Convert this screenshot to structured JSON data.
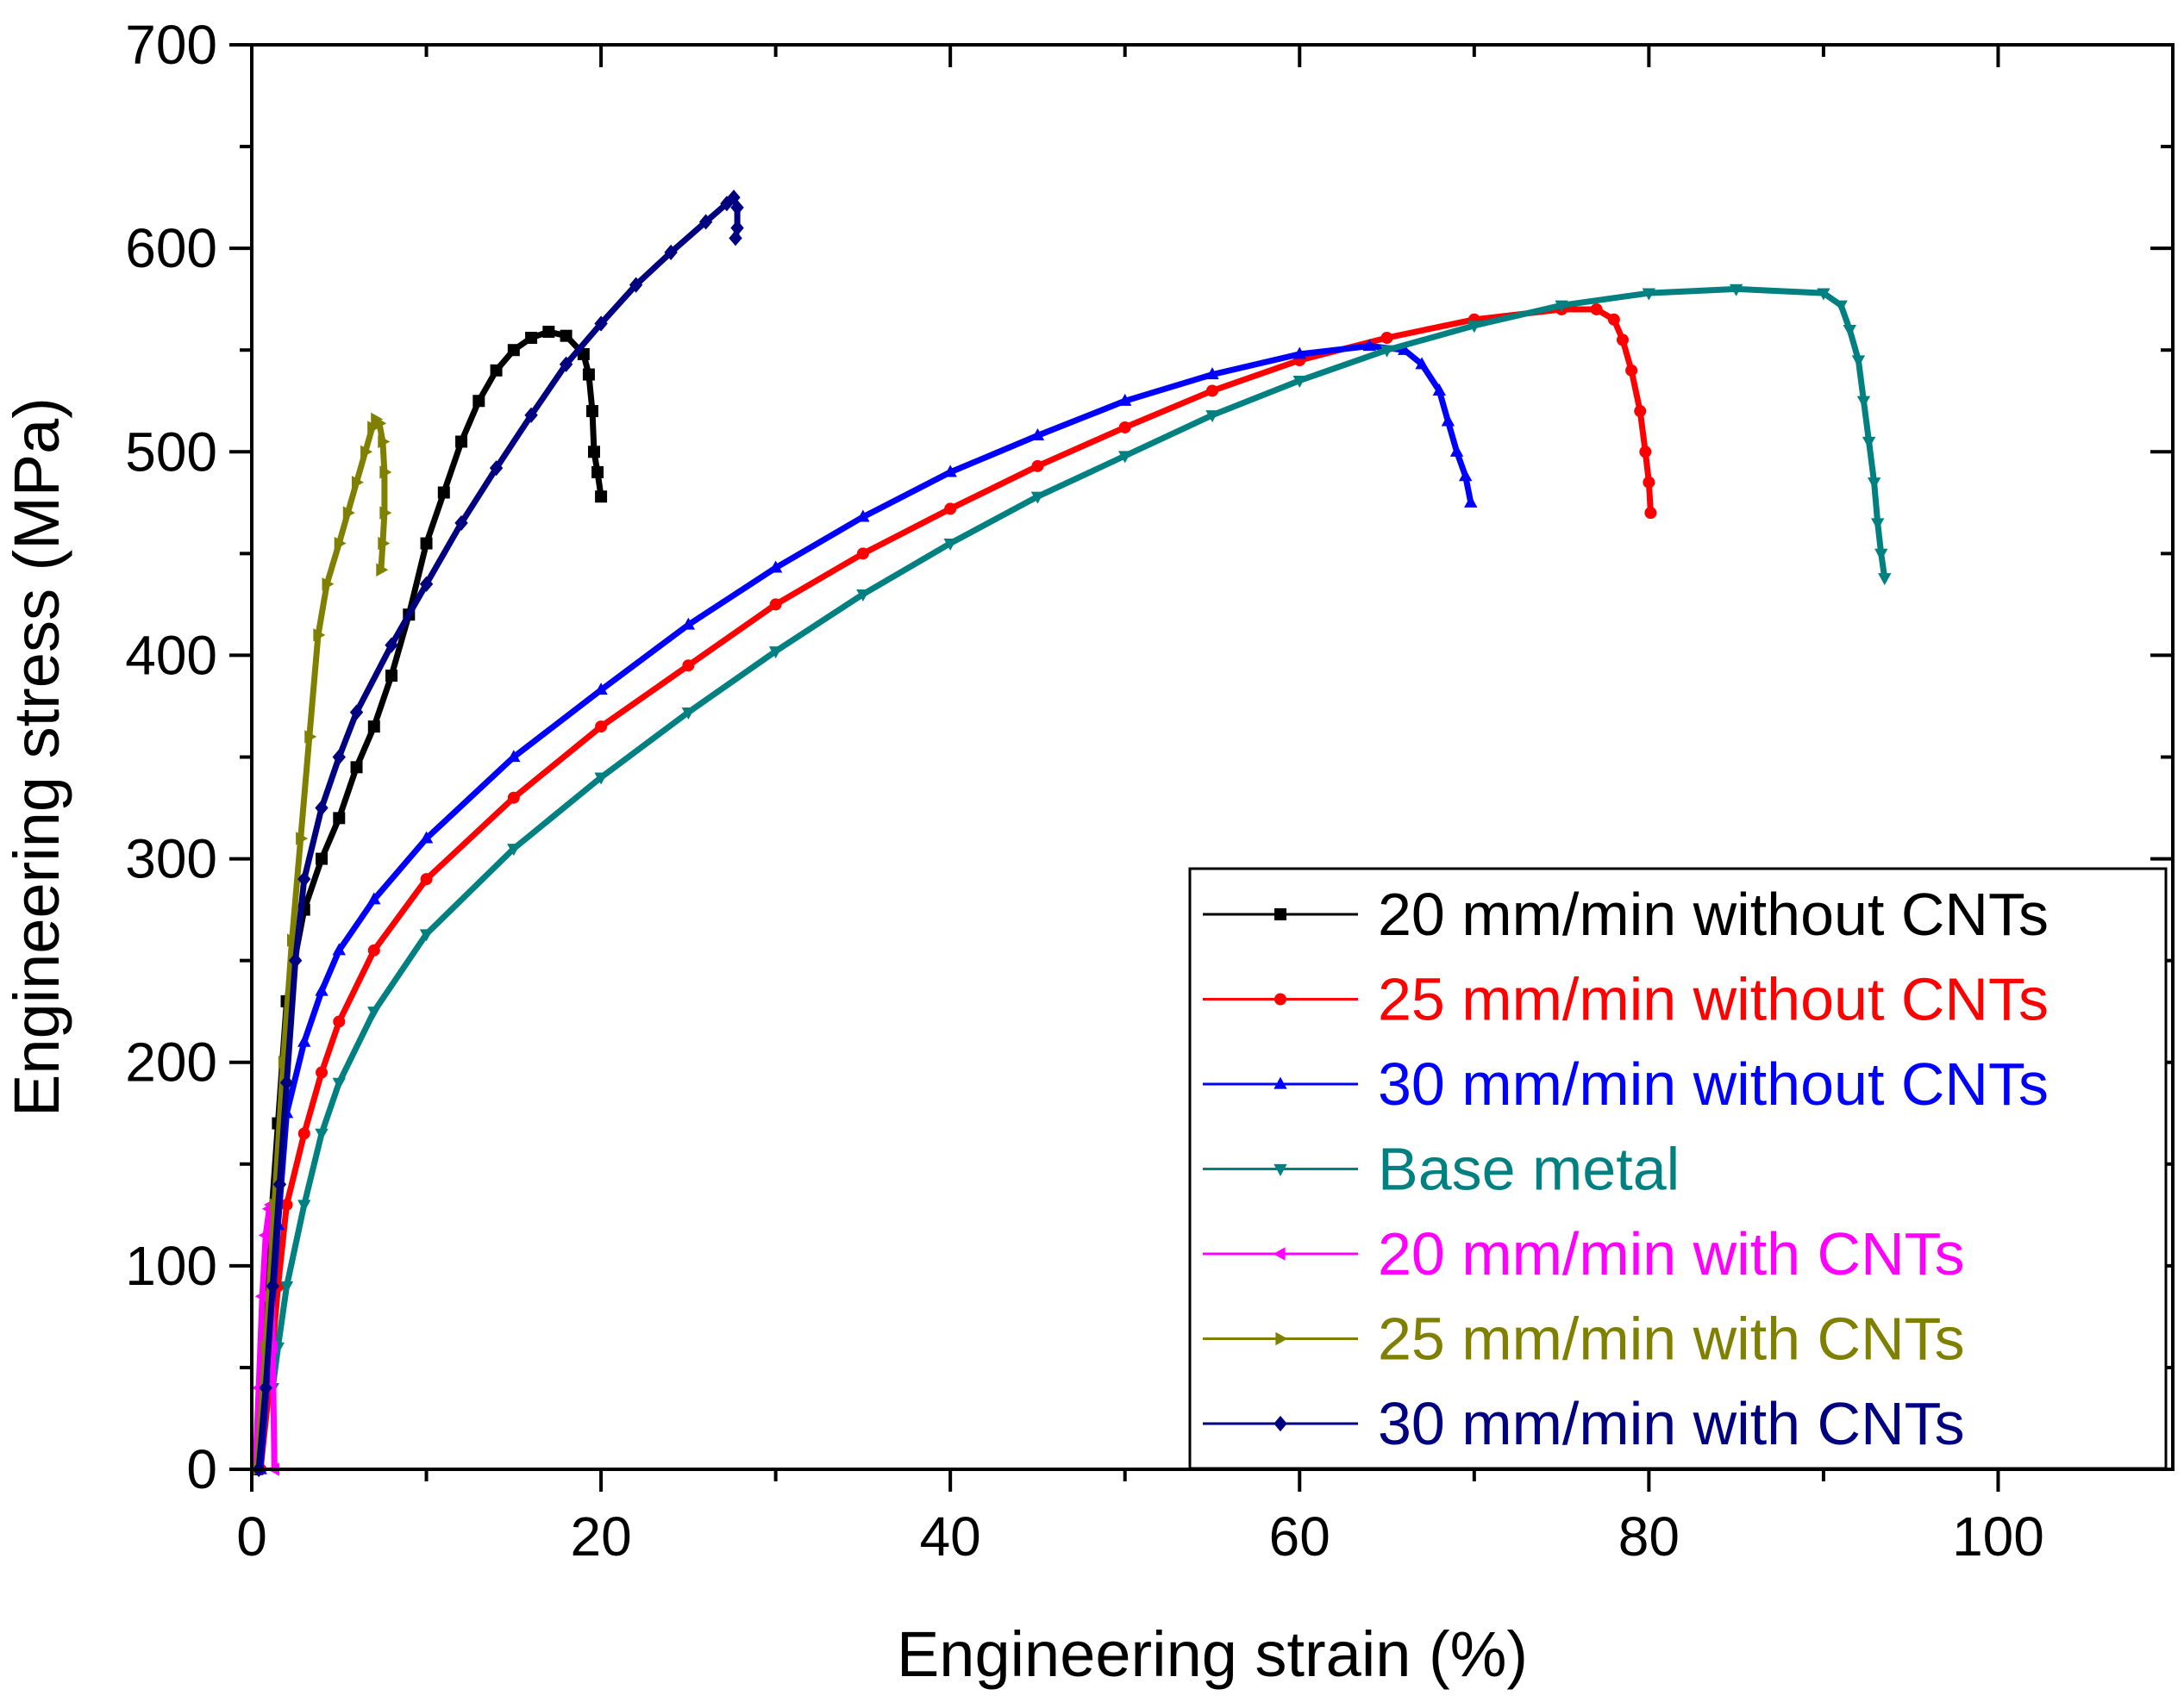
{
  "chart_data": {
    "type": "line",
    "title": "",
    "xlabel": "Engineering strain (%)",
    "ylabel": "Engineering stress (MPa)",
    "xlim": [
      0,
      110
    ],
    "ylim": [
      0,
      700
    ],
    "xticks": [
      0,
      20,
      40,
      60,
      80,
      100
    ],
    "yticks": [
      0,
      100,
      200,
      300,
      400,
      500,
      600,
      700
    ],
    "grid": false,
    "legend_position": "bottom-right",
    "series": [
      {
        "name": "20 mm/min without CNTs",
        "color": "#000000",
        "marker": "square",
        "points": [
          [
            0.3,
            0
          ],
          [
            0.6,
            40
          ],
          [
            1,
            110
          ],
          [
            1.5,
            170
          ],
          [
            2,
            230
          ],
          [
            3,
            275
          ],
          [
            4,
            300
          ],
          [
            5,
            320
          ],
          [
            6,
            345
          ],
          [
            7,
            365
          ],
          [
            8,
            390
          ],
          [
            9,
            420
          ],
          [
            10,
            455
          ],
          [
            11,
            480
          ],
          [
            12,
            505
          ],
          [
            13,
            525
          ],
          [
            14,
            540
          ],
          [
            15,
            550
          ],
          [
            16,
            556
          ],
          [
            17,
            559
          ],
          [
            18,
            557
          ],
          [
            19,
            548
          ],
          [
            19.3,
            538
          ],
          [
            19.5,
            520
          ],
          [
            19.6,
            500
          ],
          [
            19.8,
            490
          ],
          [
            20,
            478
          ]
        ]
      },
      {
        "name": "25 mm/min without CNTs",
        "color": "#ff0000",
        "marker": "circle",
        "points": [
          [
            0.5,
            0
          ],
          [
            1,
            40
          ],
          [
            1.5,
            90
          ],
          [
            2,
            130
          ],
          [
            3,
            165
          ],
          [
            4,
            195
          ],
          [
            5,
            220
          ],
          [
            7,
            255
          ],
          [
            10,
            290
          ],
          [
            15,
            330
          ],
          [
            20,
            365
          ],
          [
            25,
            395
          ],
          [
            30,
            425
          ],
          [
            35,
            450
          ],
          [
            40,
            472
          ],
          [
            45,
            493
          ],
          [
            50,
            512
          ],
          [
            55,
            530
          ],
          [
            60,
            545
          ],
          [
            65,
            556
          ],
          [
            70,
            565
          ],
          [
            75,
            570
          ],
          [
            77,
            570
          ],
          [
            78,
            565
          ],
          [
            78.5,
            555
          ],
          [
            79,
            540
          ],
          [
            79.5,
            520
          ],
          [
            79.8,
            500
          ],
          [
            80,
            485
          ],
          [
            80.1,
            470
          ]
        ]
      },
      {
        "name": "30 mm/min without CNTs",
        "color": "#0000ff",
        "marker": "triangle-up",
        "points": [
          [
            0.5,
            0
          ],
          [
            1,
            60
          ],
          [
            1.5,
            120
          ],
          [
            2,
            175
          ],
          [
            3,
            210
          ],
          [
            4,
            235
          ],
          [
            5,
            255
          ],
          [
            7,
            280
          ],
          [
            10,
            310
          ],
          [
            15,
            350
          ],
          [
            20,
            383
          ],
          [
            25,
            415
          ],
          [
            30,
            443
          ],
          [
            35,
            468
          ],
          [
            40,
            490
          ],
          [
            45,
            508
          ],
          [
            50,
            525
          ],
          [
            55,
            538
          ],
          [
            60,
            548
          ],
          [
            64,
            552
          ],
          [
            66,
            550
          ],
          [
            67,
            543
          ],
          [
            68,
            530
          ],
          [
            68.5,
            515
          ],
          [
            69,
            500
          ],
          [
            69.5,
            488
          ],
          [
            69.8,
            475
          ]
        ]
      },
      {
        "name": "Base metal",
        "color": "#008080",
        "marker": "triangle-down",
        "points": [
          [
            1.2,
            40
          ],
          [
            1.5,
            60
          ],
          [
            2,
            90
          ],
          [
            3,
            130
          ],
          [
            4,
            165
          ],
          [
            5,
            190
          ],
          [
            7,
            225
          ],
          [
            10,
            263
          ],
          [
            15,
            305
          ],
          [
            20,
            340
          ],
          [
            25,
            372
          ],
          [
            30,
            402
          ],
          [
            35,
            430
          ],
          [
            40,
            455
          ],
          [
            45,
            478
          ],
          [
            50,
            498
          ],
          [
            55,
            518
          ],
          [
            60,
            535
          ],
          [
            65,
            550
          ],
          [
            70,
            562
          ],
          [
            75,
            572
          ],
          [
            80,
            578
          ],
          [
            85,
            580
          ],
          [
            90,
            578
          ],
          [
            91,
            572
          ],
          [
            91.5,
            560
          ],
          [
            92,
            545
          ],
          [
            92.3,
            525
          ],
          [
            92.6,
            505
          ],
          [
            92.9,
            485
          ],
          [
            93.1,
            465
          ],
          [
            93.3,
            450
          ],
          [
            93.5,
            438
          ]
        ]
      },
      {
        "name": "20 mm/min with CNTs",
        "color": "#ff00ff",
        "marker": "triangle-left",
        "points": [
          [
            0.2,
            0
          ],
          [
            0.4,
            40
          ],
          [
            0.6,
            85
          ],
          [
            0.8,
            115
          ],
          [
            1,
            128
          ],
          [
            1.1,
            130
          ],
          [
            1.2,
            60
          ],
          [
            1.3,
            0
          ]
        ]
      },
      {
        "name": "25 mm/min with CNTs",
        "color": "#808000",
        "marker": "triangle-right",
        "points": [
          [
            0.3,
            0
          ],
          [
            0.8,
            60
          ],
          [
            1.3,
            130
          ],
          [
            1.8,
            200
          ],
          [
            2.3,
            260
          ],
          [
            2.8,
            310
          ],
          [
            3.3,
            360
          ],
          [
            3.8,
            410
          ],
          [
            4.3,
            435
          ],
          [
            5,
            455
          ],
          [
            5.5,
            470
          ],
          [
            6,
            485
          ],
          [
            6.5,
            500
          ],
          [
            6.9,
            512
          ],
          [
            7.1,
            516
          ],
          [
            7.3,
            514
          ],
          [
            7.5,
            505
          ],
          [
            7.6,
            490
          ],
          [
            7.6,
            470
          ],
          [
            7.5,
            455
          ],
          [
            7.4,
            442
          ]
        ]
      },
      {
        "name": "30 mm/min with CNTs",
        "color": "#000080",
        "marker": "diamond",
        "points": [
          [
            0.4,
            0
          ],
          [
            0.8,
            40
          ],
          [
            1.2,
            90
          ],
          [
            1.6,
            140
          ],
          [
            2,
            190
          ],
          [
            2.5,
            250
          ],
          [
            3,
            290
          ],
          [
            4,
            325
          ],
          [
            5,
            350
          ],
          [
            6,
            372
          ],
          [
            8,
            405
          ],
          [
            10,
            435
          ],
          [
            12,
            465
          ],
          [
            14,
            492
          ],
          [
            16,
            518
          ],
          [
            18,
            543
          ],
          [
            20,
            563
          ],
          [
            22,
            582
          ],
          [
            24,
            598
          ],
          [
            26,
            613
          ],
          [
            27.2,
            622
          ],
          [
            27.6,
            625
          ],
          [
            27.8,
            620
          ],
          [
            27.8,
            610
          ],
          [
            27.7,
            605
          ]
        ]
      }
    ]
  }
}
